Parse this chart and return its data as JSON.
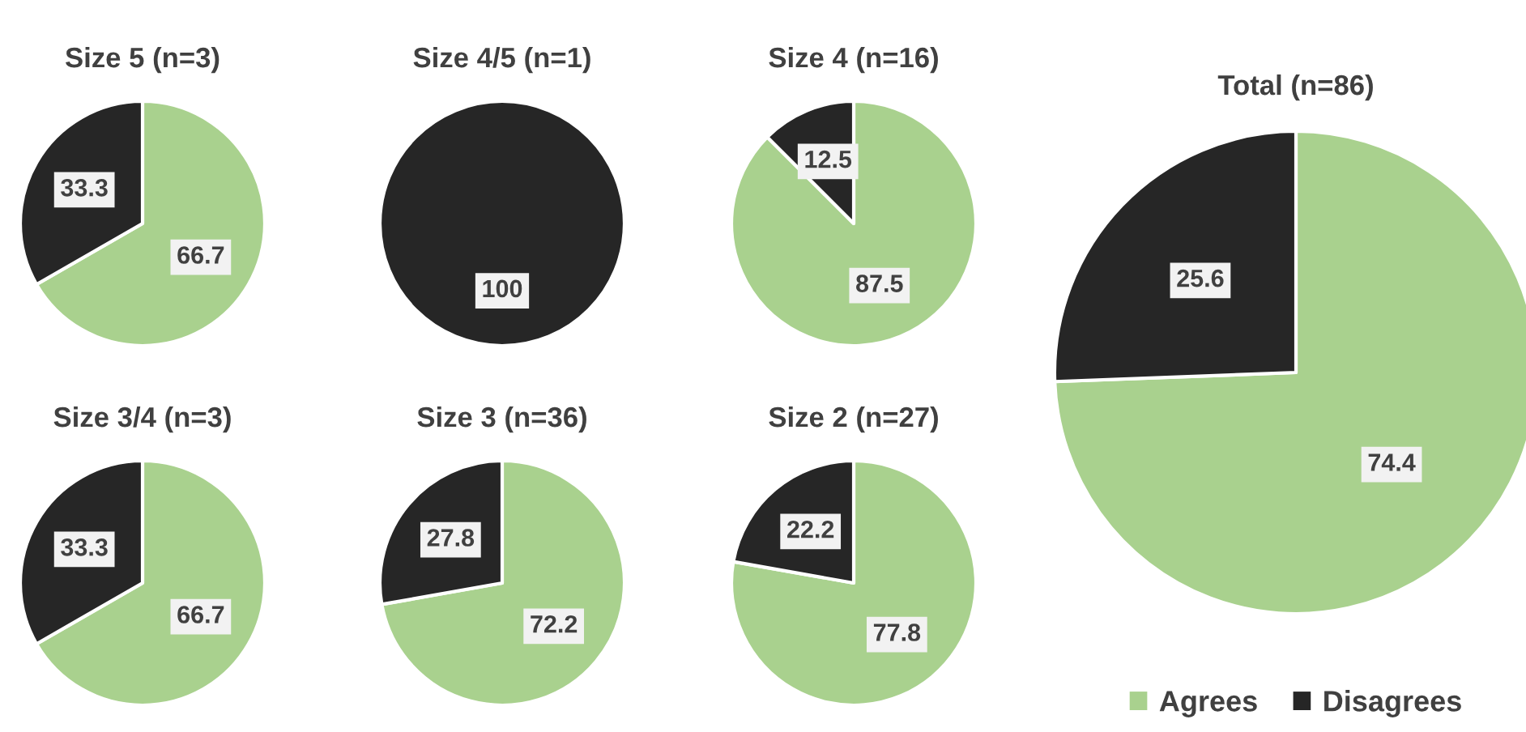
{
  "chart_data": [
    {
      "type": "pie",
      "title": "Size 5 (n=3)",
      "categories": [
        null,
        null
      ],
      "values": [
        66.7,
        33.3
      ],
      "colors": [
        "#a9d18e",
        "#262626"
      ],
      "data_labels": true
    },
    {
      "type": "pie",
      "title": "Size 4/5 (n=1)",
      "categories": [
        null,
        null
      ],
      "values": [
        0,
        100
      ],
      "colors": [
        "#a9d18e",
        "#262626"
      ],
      "value_labels": [
        null,
        "100"
      ]
    },
    {
      "type": "pie",
      "title": "Size 4 (n=16)",
      "categories": [
        null,
        null
      ],
      "values": [
        87.5,
        12.5
      ],
      "colors": [
        "#a9d18e",
        "#262626"
      ],
      "data_labels": true
    },
    {
      "type": "pie",
      "title": "Total (n=86)",
      "categories": [
        "Agrees",
        "Disagrees"
      ],
      "values": [
        74.4,
        25.6
      ],
      "colors": [
        "#a9d18e",
        "#262626"
      ],
      "data_labels": true,
      "legend": "bottom"
    },
    {
      "type": "pie",
      "title": "Size 3/4 (n=3)",
      "categories": [
        null,
        null
      ],
      "values": [
        66.7,
        33.3
      ],
      "colors": [
        "#a9d18e",
        "#262626"
      ],
      "data_labels": true
    },
    {
      "type": "pie",
      "title": "Size 3 (n=36)",
      "categories": [
        null,
        null
      ],
      "values": [
        72.2,
        27.8
      ],
      "colors": [
        "#a9d18e",
        "#262626"
      ],
      "data_labels": true
    },
    {
      "type": "pie",
      "title": "Size 2 (n=27)",
      "categories": [
        null,
        null
      ],
      "values": [
        77.8,
        22.2
      ],
      "colors": [
        "#a9d18e",
        "#262626"
      ],
      "data_labels": true
    }
  ]
}
